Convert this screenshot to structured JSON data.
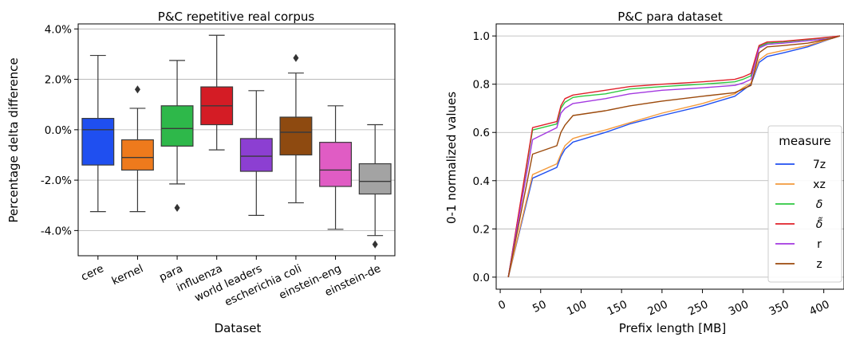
{
  "chart_data": [
    {
      "type": "box",
      "title": "P&C repetitive real corpus",
      "xlabel": "Dataset",
      "ylabel": "Percentage delta difference",
      "ylim": [
        -5.0,
        4.2
      ],
      "y_ticks": [
        -4.0,
        -2.0,
        0.0,
        2.0,
        4.0
      ],
      "y_tick_labels": [
        "-4.0%",
        "-2.0%",
        "0.0%",
        "2.0%",
        "4.0%"
      ],
      "grid": "horizontal",
      "categories": [
        "cere",
        "kernel",
        "para",
        "influenza",
        "world leaders",
        "escherichia coli",
        "einstein-eng",
        "einstein-de"
      ],
      "colors": [
        "#1f4ff0",
        "#ee7a1c",
        "#2eb84a",
        "#d41c25",
        "#8c3fd2",
        "#8e4a10",
        "#e05cc4",
        "#a3a3a3"
      ],
      "boxes": [
        {
          "whisker_low": -3.25,
          "q1": -1.4,
          "median": 0.0,
          "q3": 0.45,
          "whisker_high": 2.95,
          "outliers": []
        },
        {
          "whisker_low": -3.25,
          "q1": -1.6,
          "median": -1.1,
          "q3": -0.4,
          "whisker_high": 0.85,
          "outliers": [
            1.6
          ]
        },
        {
          "whisker_low": -2.15,
          "q1": -0.65,
          "median": 0.05,
          "q3": 0.95,
          "whisker_high": 2.75,
          "outliers": [
            -3.1
          ]
        },
        {
          "whisker_low": -0.8,
          "q1": 0.2,
          "median": 0.95,
          "q3": 1.7,
          "whisker_high": 3.75,
          "outliers": []
        },
        {
          "whisker_low": -3.4,
          "q1": -1.65,
          "median": -1.05,
          "q3": -0.35,
          "whisker_high": 1.55,
          "outliers": []
        },
        {
          "whisker_low": -2.9,
          "q1": -1.0,
          "median": -0.1,
          "q3": 0.5,
          "whisker_high": 2.25,
          "outliers": [
            2.85
          ]
        },
        {
          "whisker_low": -3.95,
          "q1": -2.25,
          "median": -1.6,
          "q3": -0.5,
          "whisker_high": 0.95,
          "outliers": []
        },
        {
          "whisker_low": -4.2,
          "q1": -2.55,
          "median": -2.05,
          "q3": -1.35,
          "whisker_high": 0.2,
          "outliers": [
            -4.55
          ]
        }
      ]
    },
    {
      "type": "line",
      "title": "P&C para dataset",
      "xlabel": "Prefix length [MB]",
      "ylabel": "0-1 normalized values",
      "xlim": [
        -5,
        425
      ],
      "ylim": [
        -0.05,
        1.05
      ],
      "x_ticks": [
        0,
        50,
        100,
        150,
        200,
        250,
        300,
        350,
        400
      ],
      "y_ticks": [
        0.0,
        0.2,
        0.4,
        0.6,
        0.8,
        1.0
      ],
      "y_tick_labels": [
        "0.0",
        "0.2",
        "0.4",
        "0.6",
        "0.8",
        "1.0"
      ],
      "grid": "horizontal",
      "legend": {
        "title": "measure",
        "placement": "lower-right"
      },
      "x": [
        10,
        40,
        70,
        75,
        80,
        90,
        100,
        130,
        160,
        200,
        250,
        290,
        300,
        310,
        320,
        330,
        350,
        380,
        410,
        420
      ],
      "series": [
        {
          "name": "7z",
          "color": "#1f4ff0",
          "values": [
            0.0,
            0.41,
            0.455,
            0.5,
            0.53,
            0.56,
            0.57,
            0.6,
            0.635,
            0.67,
            0.71,
            0.75,
            0.775,
            0.8,
            0.89,
            0.915,
            0.93,
            0.955,
            0.99,
            1.0
          ]
        },
        {
          "name": "xz",
          "color": "#f39a3c",
          "values": [
            0.0,
            0.425,
            0.47,
            0.51,
            0.545,
            0.575,
            0.585,
            0.61,
            0.64,
            0.68,
            0.72,
            0.76,
            0.785,
            0.805,
            0.9,
            0.925,
            0.94,
            0.96,
            0.99,
            1.0
          ]
        },
        {
          "name": "δ",
          "color": "#2ec840",
          "values": [
            0.0,
            0.61,
            0.635,
            0.7,
            0.725,
            0.745,
            0.75,
            0.76,
            0.78,
            0.79,
            0.8,
            0.81,
            0.82,
            0.835,
            0.955,
            0.97,
            0.975,
            0.985,
            0.995,
            1.0
          ]
        },
        {
          "name": "δ̃",
          "color": "#e0202a",
          "values": [
            0.0,
            0.62,
            0.645,
            0.71,
            0.74,
            0.755,
            0.76,
            0.775,
            0.79,
            0.8,
            0.81,
            0.82,
            0.83,
            0.845,
            0.96,
            0.975,
            0.978,
            0.987,
            0.996,
            1.0
          ]
        },
        {
          "name": "r",
          "color": "#a338e0",
          "values": [
            0.0,
            0.57,
            0.62,
            0.68,
            0.7,
            0.72,
            0.725,
            0.74,
            0.76,
            0.775,
            0.785,
            0.795,
            0.805,
            0.82,
            0.95,
            0.965,
            0.97,
            0.98,
            0.99,
            1.0
          ]
        },
        {
          "name": "z",
          "color": "#9c4a0c",
          "values": [
            0.0,
            0.51,
            0.545,
            0.6,
            0.63,
            0.67,
            0.675,
            0.69,
            0.71,
            0.73,
            0.75,
            0.765,
            0.78,
            0.795,
            0.93,
            0.955,
            0.96,
            0.97,
            0.99,
            1.0
          ]
        }
      ]
    }
  ]
}
